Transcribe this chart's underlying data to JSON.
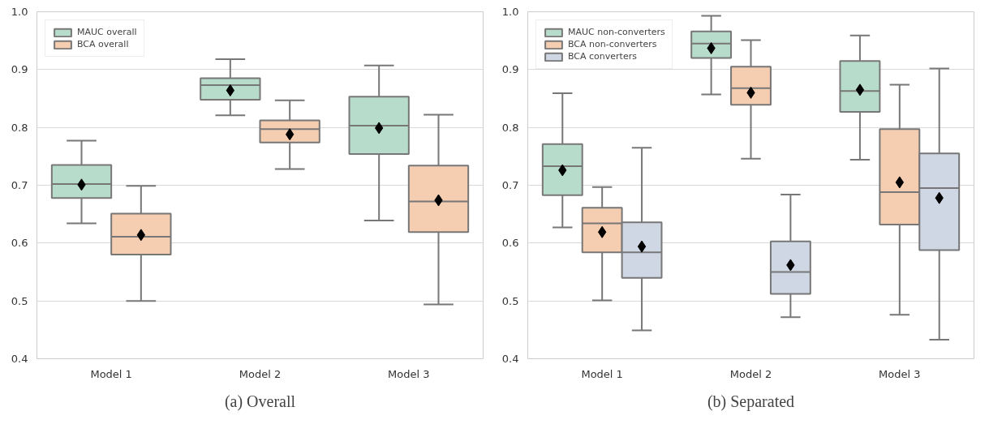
{
  "chart_data": [
    {
      "type": "box",
      "title": "(a) Overall",
      "categories": [
        "Model 1",
        "Model 2",
        "Model 3"
      ],
      "ylim": [
        0.4,
        1.0
      ],
      "yticks": [
        0.4,
        0.5,
        0.6,
        0.7,
        0.8,
        0.9,
        {
          "value": 1,
          "label": "1.0"
        }
      ],
      "grid": "y",
      "legend": "top left",
      "series": [
        {
          "name": "MAUC overall",
          "color": "#b8dccb",
          "boxes": [
            {
              "low": 0.634,
              "q1": 0.678,
              "median": 0.702,
              "q3": 0.735,
              "high": 0.777,
              "mean": 0.701
            },
            {
              "low": 0.821,
              "q1": 0.848,
              "median": 0.873,
              "q3": 0.885,
              "high": 0.918,
              "mean": 0.864
            },
            {
              "low": 0.639,
              "q1": 0.754,
              "median": 0.803,
              "q3": 0.853,
              "high": 0.907,
              "mean": 0.799
            }
          ]
        },
        {
          "name": "BCA overall",
          "color": "#f5cdb0",
          "boxes": [
            {
              "low": 0.5,
              "q1": 0.58,
              "median": 0.611,
              "q3": 0.651,
              "high": 0.699,
              "mean": 0.614
            },
            {
              "low": 0.728,
              "q1": 0.774,
              "median": 0.797,
              "q3": 0.812,
              "high": 0.847,
              "mean": 0.788
            },
            {
              "low": 0.494,
              "q1": 0.619,
              "median": 0.672,
              "q3": 0.734,
              "high": 0.822,
              "mean": 0.674
            }
          ]
        }
      ]
    },
    {
      "type": "box",
      "title": "(b) Separated",
      "categories": [
        "Model 1",
        "Model 2",
        "Model 3"
      ],
      "ylim": [
        0.4,
        1.0
      ],
      "yticks": [
        0.4,
        0.5,
        0.6,
        0.7,
        0.8,
        0.9,
        {
          "value": 1,
          "label": "1.0"
        }
      ],
      "grid": "y",
      "legend": "top left",
      "series": [
        {
          "name": "MAUC non-converters",
          "color": "#b8dccb",
          "boxes": [
            {
              "low": 0.627,
              "q1": 0.683,
              "median": 0.733,
              "q3": 0.771,
              "high": 0.859,
              "mean": 0.726
            },
            {
              "low": 0.857,
              "q1": 0.92,
              "median": 0.945,
              "q3": 0.966,
              "high": 0.993,
              "mean": 0.937
            },
            {
              "low": 0.744,
              "q1": 0.827,
              "median": 0.863,
              "q3": 0.915,
              "high": 0.959,
              "mean": 0.865
            }
          ]
        },
        {
          "name": "BCA non-converters",
          "color": "#f5cdb0",
          "boxes": [
            {
              "low": 0.501,
              "q1": 0.584,
              "median": 0.634,
              "q3": 0.661,
              "high": 0.697,
              "mean": 0.619
            },
            {
              "low": 0.746,
              "q1": 0.839,
              "median": 0.868,
              "q3": 0.905,
              "high": 0.951,
              "mean": 0.86
            },
            {
              "low": 0.476,
              "q1": 0.632,
              "median": 0.688,
              "q3": 0.797,
              "high": 0.874,
              "mean": 0.705
            }
          ]
        },
        {
          "name": "BCA converters",
          "color": "#cfd6e4",
          "boxes": [
            {
              "low": 0.449,
              "q1": 0.54,
              "median": 0.584,
              "q3": 0.636,
              "high": 0.765,
              "mean": 0.594
            },
            {
              "low": 0.472,
              "q1": 0.512,
              "median": 0.55,
              "q3": 0.603,
              "high": 0.684,
              "mean": 0.562
            },
            {
              "low": 0.433,
              "q1": 0.588,
              "median": 0.695,
              "q3": 0.755,
              "high": 0.902,
              "mean": 0.678
            }
          ]
        }
      ]
    }
  ]
}
